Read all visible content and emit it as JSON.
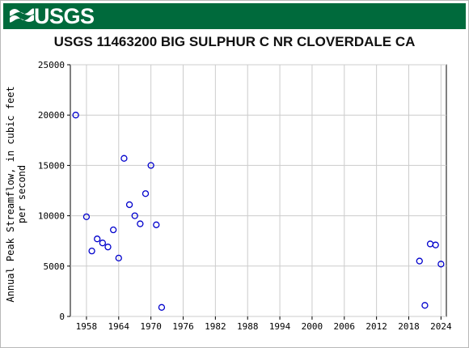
{
  "header": {
    "agency": "USGS",
    "logo_icon": "usgs-wave-logo-icon",
    "banner_color": "#006a3c"
  },
  "chart_data": {
    "type": "scatter",
    "title": "USGS 11463200 BIG SULPHUR C NR CLOVERDALE CA",
    "xlabel": "",
    "ylabel_lines": [
      "Annual Peak Streamflow, in cubic feet",
      "per second"
    ],
    "xlim": [
      1955,
      2025
    ],
    "ylim": [
      0,
      25000
    ],
    "x_ticks": [
      1958,
      1964,
      1970,
      1976,
      1982,
      1988,
      1994,
      2000,
      2006,
      2012,
      2018,
      2024
    ],
    "y_ticks": [
      0,
      5000,
      10000,
      15000,
      20000,
      25000
    ],
    "grid": true,
    "marker": "open-circle",
    "marker_color": "#0000cc",
    "points": [
      {
        "x": 1956,
        "y": 20000
      },
      {
        "x": 1958,
        "y": 9900
      },
      {
        "x": 1959,
        "y": 6500
      },
      {
        "x": 1960,
        "y": 7700
      },
      {
        "x": 1961,
        "y": 7300
      },
      {
        "x": 1962,
        "y": 6900
      },
      {
        "x": 1963,
        "y": 8600
      },
      {
        "x": 1964,
        "y": 5800
      },
      {
        "x": 1965,
        "y": 15700
      },
      {
        "x": 1966,
        "y": 11100
      },
      {
        "x": 1967,
        "y": 10000
      },
      {
        "x": 1968,
        "y": 9200
      },
      {
        "x": 1969,
        "y": 12200
      },
      {
        "x": 1970,
        "y": 15000
      },
      {
        "x": 1971,
        "y": 9100
      },
      {
        "x": 1972,
        "y": 900
      },
      {
        "x": 2020,
        "y": 5500
      },
      {
        "x": 2021,
        "y": 1100
      },
      {
        "x": 2022,
        "y": 7200
      },
      {
        "x": 2023,
        "y": 7100
      },
      {
        "x": 2024,
        "y": 5200
      }
    ]
  }
}
